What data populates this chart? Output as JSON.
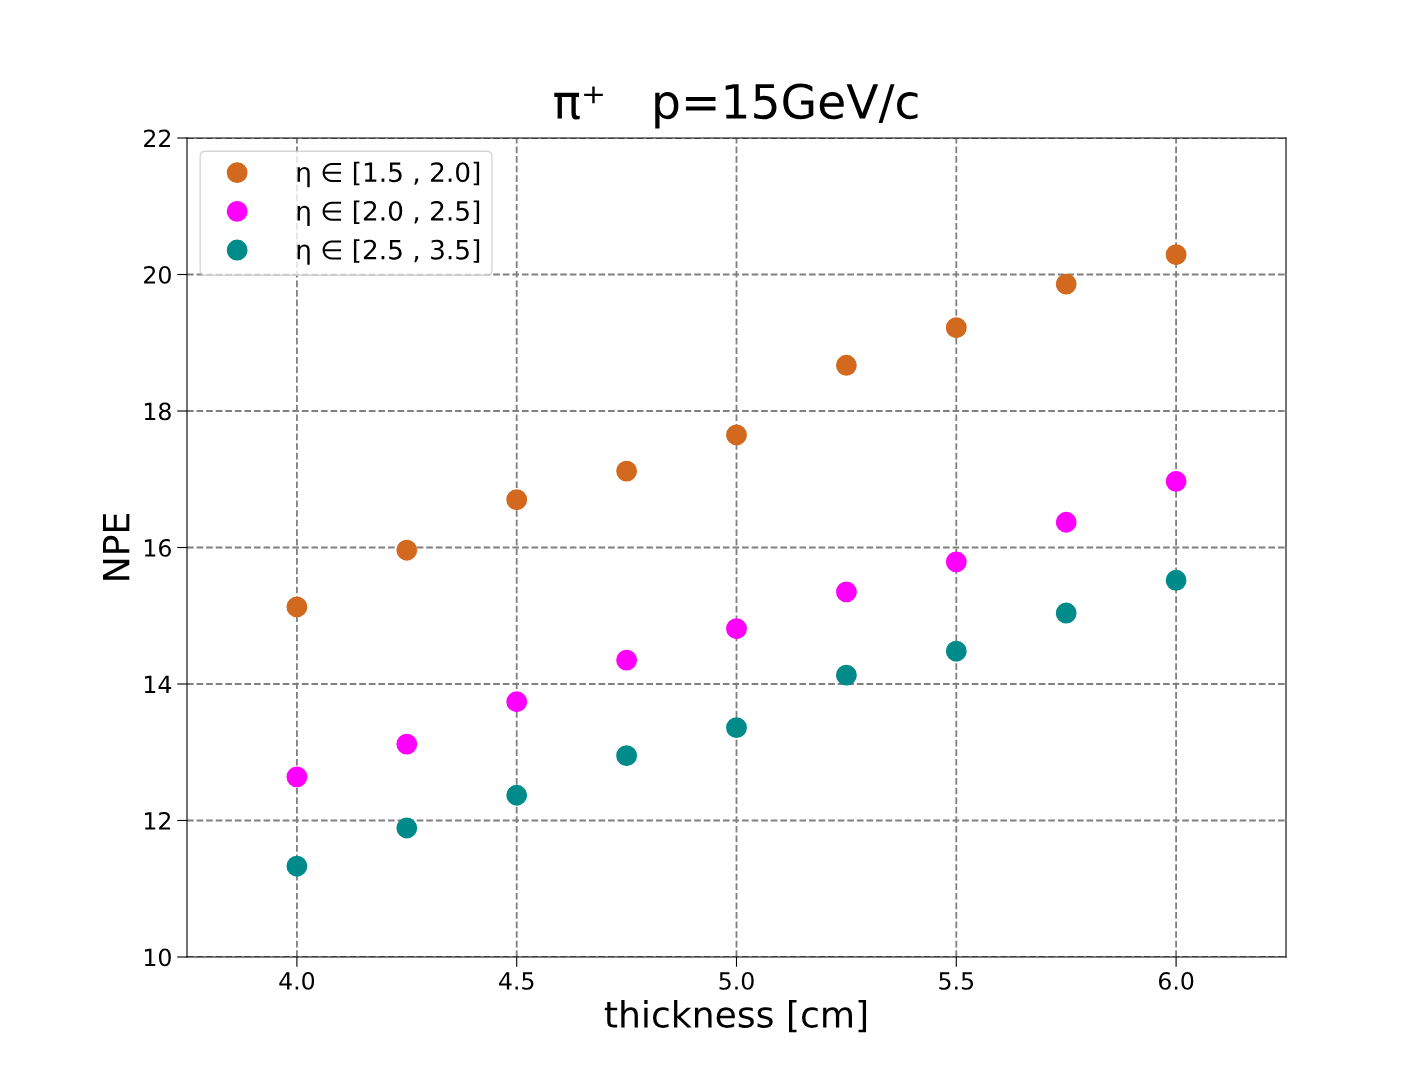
{
  "chart_data": {
    "type": "scatter",
    "title": "π⁺   p=15GeV/c",
    "xlabel": "thickness [cm]",
    "ylabel": "NPE",
    "x": [
      4.0,
      4.25,
      4.5,
      4.75,
      5.0,
      5.25,
      5.5,
      5.75,
      6.0
    ],
    "series": [
      {
        "name": "η ∈ [1.5 , 2.0]",
        "color": "#d2691e",
        "values": [
          15.13,
          15.96,
          16.7,
          17.12,
          17.65,
          18.67,
          19.22,
          19.86,
          20.29
        ]
      },
      {
        "name": "η ∈ [2.0 , 2.5]",
        "color": "#ff00ff",
        "values": [
          12.64,
          13.12,
          13.74,
          14.35,
          14.81,
          15.35,
          15.79,
          16.37,
          16.97
        ]
      },
      {
        "name": "η ∈ [2.5 , 3.5]",
        "color": "#008b8b",
        "values": [
          11.33,
          11.89,
          12.37,
          12.95,
          13.36,
          14.13,
          14.48,
          15.04,
          15.52
        ]
      }
    ],
    "xlim": [
      3.75,
      6.25
    ],
    "xticks": [
      {
        "value": 4.0,
        "label": "4.0"
      },
      {
        "value": 4.5,
        "label": "4.5"
      },
      {
        "value": 5.0,
        "label": "5.0"
      },
      {
        "value": 5.5,
        "label": "5.5"
      },
      {
        "value": 6.0,
        "label": "6.0"
      }
    ],
    "ylim": [
      10,
      22
    ],
    "yticks": [
      10,
      12,
      14,
      16,
      18,
      20,
      22
    ],
    "grid": true,
    "legend": "top left",
    "marker": "circle"
  }
}
